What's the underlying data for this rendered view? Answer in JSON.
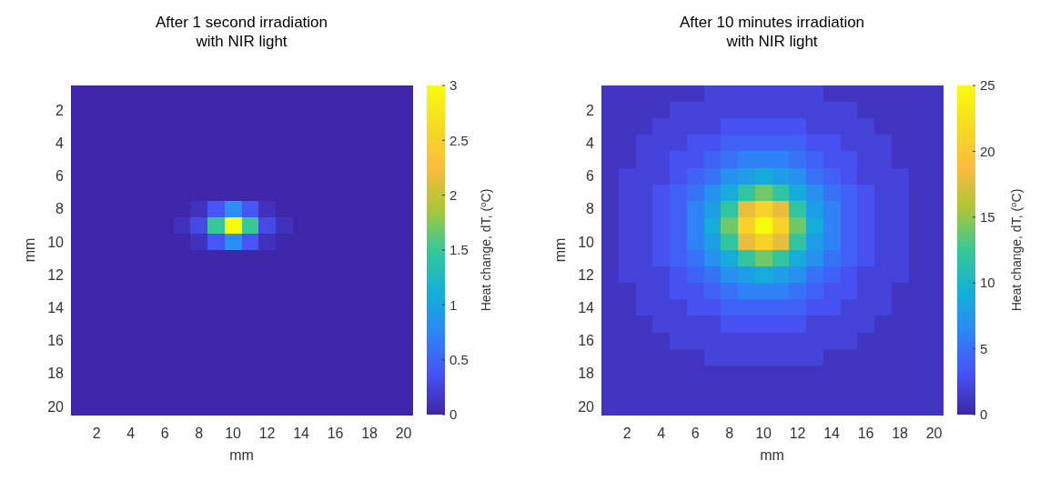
{
  "chart_data": [
    {
      "type": "heatmap",
      "title": "After 1 second irradiation\nwith NIR light",
      "xlabel": "mm",
      "ylabel": "mm",
      "clabel": "Heat change, dT, ($^{o}$C)",
      "categories": [
        null,
        "2",
        null,
        "4",
        null,
        "6",
        null,
        "8",
        null,
        "10",
        null,
        "12",
        null,
        "14",
        null,
        "16",
        null,
        "18",
        null,
        "20"
      ],
      "y_categories": [
        null,
        "2",
        null,
        "4",
        null,
        "6",
        null,
        "8",
        null,
        "10",
        null,
        "12",
        null,
        "14",
        null,
        "16",
        null,
        "18",
        null,
        "20"
      ],
      "clim": [
        0,
        3
      ],
      "cticks": [
        0,
        0.5,
        1,
        1.5,
        2,
        2.5,
        3
      ],
      "cells": [
        [
          0,
          0,
          0,
          0,
          0,
          0,
          0,
          0,
          0,
          0,
          0,
          0,
          0,
          0,
          0,
          0,
          0,
          0,
          0,
          0
        ],
        [
          0,
          0,
          0,
          0,
          0,
          0,
          0,
          0,
          0,
          0,
          0,
          0,
          0,
          0,
          0,
          0,
          0,
          0,
          0,
          0
        ],
        [
          0,
          0,
          0,
          0,
          0,
          0,
          0,
          0,
          0,
          0,
          0,
          0,
          0,
          0,
          0,
          0,
          0,
          0,
          0,
          0
        ],
        [
          0,
          0,
          0,
          0,
          0,
          0,
          0,
          0,
          0,
          0,
          0,
          0,
          0,
          0,
          0,
          0,
          0,
          0,
          0,
          0
        ],
        [
          0,
          0,
          0,
          0,
          0,
          0,
          0,
          0,
          0,
          0,
          0,
          0,
          0,
          0,
          0,
          0,
          0,
          0,
          0,
          0
        ],
        [
          0,
          0,
          0,
          0,
          0,
          0,
          0,
          0,
          0,
          0,
          0,
          0,
          0,
          0,
          0,
          0,
          0,
          0,
          0,
          0
        ],
        [
          0,
          0,
          0,
          0,
          0,
          0,
          0,
          0,
          0,
          0,
          0,
          0,
          0,
          0,
          0,
          0,
          0,
          0,
          0,
          0
        ],
        [
          0,
          0,
          0,
          0,
          0,
          0,
          0,
          0.1,
          0.4,
          0.8,
          0.4,
          0.1,
          0,
          0,
          0,
          0,
          0,
          0,
          0,
          0
        ],
        [
          0,
          0,
          0,
          0,
          0,
          0,
          0.1,
          0.3,
          1.5,
          3,
          1.5,
          0.3,
          0.1,
          0,
          0,
          0,
          0,
          0,
          0,
          0
        ],
        [
          0,
          0,
          0,
          0,
          0,
          0,
          0,
          0.1,
          0.4,
          0.8,
          0.4,
          0.1,
          0,
          0,
          0,
          0,
          0,
          0,
          0,
          0
        ],
        [
          0,
          0,
          0,
          0,
          0,
          0,
          0,
          0,
          0,
          0,
          0,
          0,
          0,
          0,
          0,
          0,
          0,
          0,
          0,
          0
        ],
        [
          0,
          0,
          0,
          0,
          0,
          0,
          0,
          0,
          0,
          0,
          0,
          0,
          0,
          0,
          0,
          0,
          0,
          0,
          0,
          0
        ],
        [
          0,
          0,
          0,
          0,
          0,
          0,
          0,
          0,
          0,
          0,
          0,
          0,
          0,
          0,
          0,
          0,
          0,
          0,
          0,
          0
        ],
        [
          0,
          0,
          0,
          0,
          0,
          0,
          0,
          0,
          0,
          0,
          0,
          0,
          0,
          0,
          0,
          0,
          0,
          0,
          0,
          0
        ],
        [
          0,
          0,
          0,
          0,
          0,
          0,
          0,
          0,
          0,
          0,
          0,
          0,
          0,
          0,
          0,
          0,
          0,
          0,
          0,
          0
        ],
        [
          0,
          0,
          0,
          0,
          0,
          0,
          0,
          0,
          0,
          0,
          0,
          0,
          0,
          0,
          0,
          0,
          0,
          0,
          0,
          0
        ],
        [
          0,
          0,
          0,
          0,
          0,
          0,
          0,
          0,
          0,
          0,
          0,
          0,
          0,
          0,
          0,
          0,
          0,
          0,
          0,
          0
        ],
        [
          0,
          0,
          0,
          0,
          0,
          0,
          0,
          0,
          0,
          0,
          0,
          0,
          0,
          0,
          0,
          0,
          0,
          0,
          0,
          0
        ],
        [
          0,
          0,
          0,
          0,
          0,
          0,
          0,
          0,
          0,
          0,
          0,
          0,
          0,
          0,
          0,
          0,
          0,
          0,
          0,
          0
        ],
        [
          0,
          0,
          0,
          0,
          0,
          0,
          0,
          0,
          0,
          0,
          0,
          0,
          0,
          0,
          0,
          0,
          0,
          0,
          0,
          0
        ]
      ]
    },
    {
      "type": "heatmap",
      "title": "After 10 minutes irradiation\nwith NIR light",
      "xlabel": "mm",
      "ylabel": "mm",
      "clabel": "Heat change, dT, ($^{o}$C)",
      "categories": [
        null,
        "2",
        null,
        "4",
        null,
        "6",
        null,
        "8",
        null,
        "10",
        null,
        "12",
        null,
        "14",
        null,
        "16",
        null,
        "18",
        null,
        "20"
      ],
      "y_categories": [
        null,
        "2",
        null,
        "4",
        null,
        "6",
        null,
        "8",
        null,
        "10",
        null,
        "12",
        null,
        "14",
        null,
        "16",
        null,
        "18",
        null,
        "20"
      ],
      "clim": [
        0,
        25
      ],
      "cticks": [
        0,
        5,
        10,
        15,
        20,
        25
      ],
      "cells": [
        [
          1,
          1,
          1,
          1,
          1,
          1,
          2,
          2,
          2,
          2,
          2,
          2,
          2,
          1,
          1,
          1,
          1,
          1,
          1,
          1
        ],
        [
          1,
          1,
          1,
          1,
          2,
          2,
          2,
          2,
          2,
          2,
          2,
          2,
          2,
          2,
          2,
          1,
          1,
          1,
          1,
          1
        ],
        [
          1,
          1,
          1,
          2,
          2,
          2,
          2,
          3,
          3,
          3,
          3,
          3,
          2,
          2,
          2,
          2,
          1,
          1,
          1,
          1
        ],
        [
          1,
          1,
          2,
          2,
          2,
          3,
          3,
          4,
          4,
          4,
          4,
          4,
          3,
          3,
          2,
          2,
          2,
          1,
          1,
          1
        ],
        [
          1,
          1,
          2,
          2,
          3,
          3,
          4,
          5,
          6,
          6,
          6,
          5,
          4,
          3,
          3,
          2,
          2,
          1,
          1,
          1
        ],
        [
          1,
          2,
          2,
          2,
          3,
          4,
          5,
          7,
          8,
          9,
          8,
          7,
          5,
          4,
          3,
          2,
          2,
          2,
          1,
          1
        ],
        [
          1,
          2,
          2,
          3,
          4,
          5,
          7,
          9,
          12,
          14,
          12,
          9,
          7,
          5,
          4,
          3,
          2,
          2,
          1,
          1
        ],
        [
          1,
          2,
          2,
          3,
          4,
          6,
          8,
          12,
          18,
          21,
          18,
          12,
          8,
          6,
          4,
          3,
          2,
          2,
          1,
          1
        ],
        [
          1,
          2,
          2,
          3,
          4,
          6,
          9,
          14,
          21,
          25,
          21,
          14,
          9,
          6,
          4,
          3,
          2,
          2,
          1,
          1
        ],
        [
          1,
          2,
          2,
          3,
          4,
          6,
          8,
          12,
          18,
          21,
          18,
          12,
          8,
          6,
          4,
          3,
          2,
          2,
          1,
          1
        ],
        [
          1,
          2,
          2,
          3,
          4,
          5,
          7,
          9,
          12,
          14,
          12,
          9,
          7,
          5,
          4,
          3,
          2,
          2,
          1,
          1
        ],
        [
          1,
          2,
          2,
          2,
          3,
          4,
          5,
          7,
          8,
          9,
          8,
          7,
          5,
          4,
          3,
          2,
          2,
          2,
          1,
          1
        ],
        [
          1,
          1,
          2,
          2,
          3,
          3,
          4,
          5,
          6,
          6,
          6,
          5,
          4,
          3,
          3,
          2,
          2,
          1,
          1,
          1
        ],
        [
          1,
          1,
          2,
          2,
          2,
          3,
          3,
          4,
          4,
          4,
          4,
          4,
          3,
          3,
          2,
          2,
          2,
          1,
          1,
          1
        ],
        [
          1,
          1,
          1,
          2,
          2,
          2,
          2,
          3,
          3,
          3,
          3,
          3,
          2,
          2,
          2,
          2,
          1,
          1,
          1,
          1
        ],
        [
          1,
          1,
          1,
          1,
          2,
          2,
          2,
          2,
          2,
          2,
          2,
          2,
          2,
          2,
          2,
          1,
          1,
          1,
          1,
          1
        ],
        [
          1,
          1,
          1,
          1,
          1,
          1,
          2,
          2,
          2,
          2,
          2,
          2,
          2,
          1,
          1,
          1,
          1,
          1,
          1,
          1
        ],
        [
          1,
          1,
          1,
          1,
          1,
          1,
          1,
          1,
          1,
          1,
          1,
          1,
          1,
          1,
          1,
          1,
          1,
          1,
          1,
          1
        ],
        [
          1,
          1,
          1,
          1,
          1,
          1,
          1,
          1,
          1,
          1,
          1,
          1,
          1,
          1,
          1,
          1,
          1,
          1,
          1,
          1
        ],
        [
          1,
          1,
          1,
          1,
          1,
          1,
          1,
          1,
          1,
          1,
          1,
          1,
          1,
          1,
          1,
          1,
          1,
          1,
          1,
          1
        ]
      ]
    }
  ]
}
